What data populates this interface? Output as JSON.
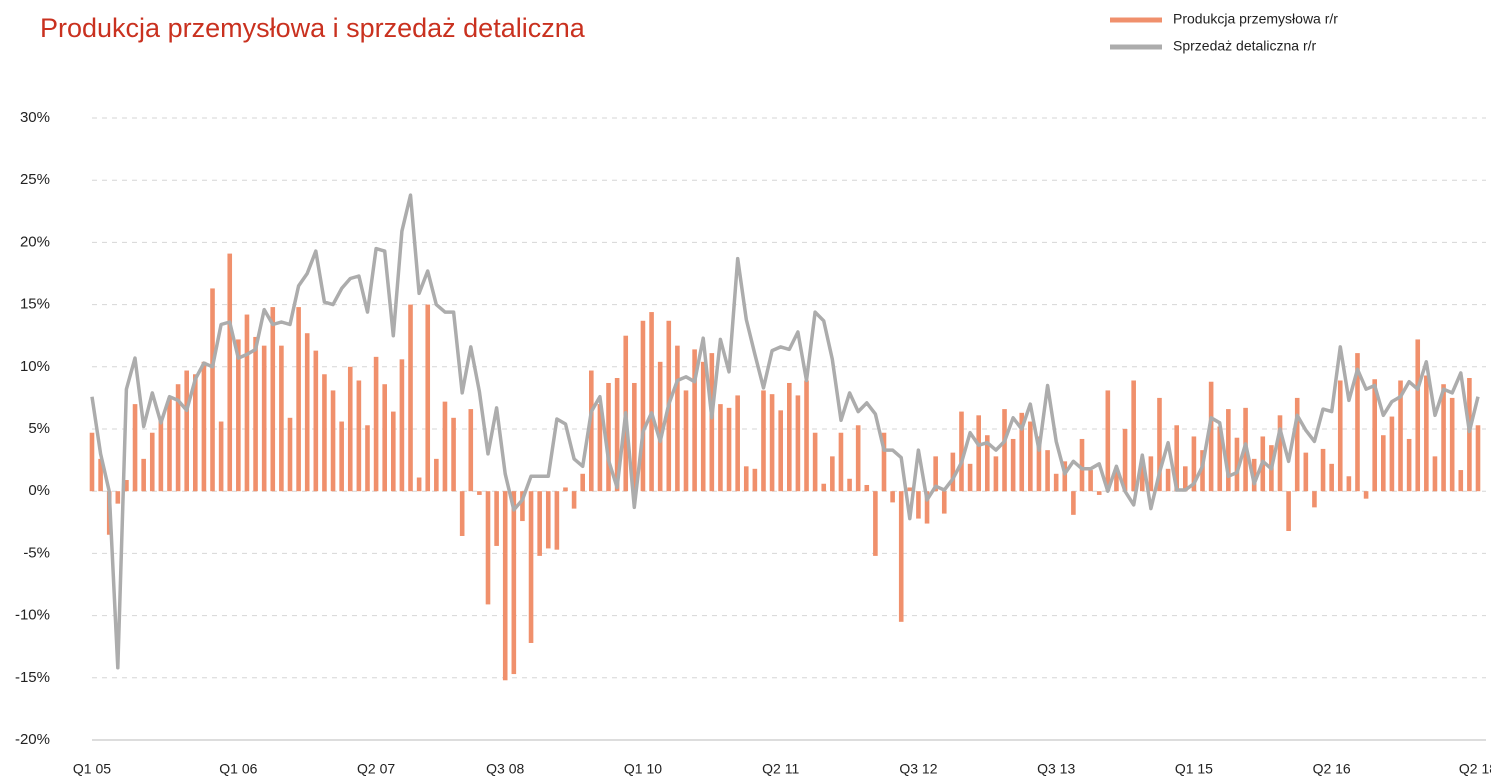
{
  "chart_data": {
    "type": "bar-line",
    "title": "Produkcja przemysłowa i sprzedaż detaliczna",
    "categories": [
      "Q1 05",
      null,
      null,
      null,
      null,
      null,
      null,
      null,
      null,
      null,
      null,
      null,
      null,
      null,
      null,
      null,
      null,
      "Q1 06",
      null,
      null,
      null,
      null,
      null,
      null,
      null,
      null,
      null,
      null,
      null,
      null,
      null,
      null,
      null,
      "Q2 07",
      null,
      null,
      null,
      null,
      null,
      null,
      null,
      null,
      null,
      null,
      null,
      null,
      null,
      null,
      "Q3 08",
      null,
      null,
      null,
      null,
      null,
      null,
      null,
      null,
      null,
      null,
      null,
      null,
      null,
      null,
      null,
      "Q1 10",
      null,
      null,
      null,
      null,
      null,
      null,
      null,
      null,
      null,
      null,
      null,
      null,
      null,
      null,
      null,
      "Q2 11",
      null,
      null,
      null,
      null,
      null,
      null,
      null,
      null,
      null,
      null,
      null,
      null,
      null,
      null,
      null,
      "Q3 12",
      null,
      null,
      null,
      null,
      null,
      null,
      null,
      null,
      null,
      null,
      null,
      null,
      null,
      null,
      null,
      "Q3 13",
      null,
      null,
      null,
      null,
      null,
      null,
      null,
      null,
      null,
      null,
      null,
      null,
      null,
      null,
      null,
      "Q1 15",
      null,
      null,
      null,
      null,
      null,
      null,
      null,
      null,
      null,
      null,
      null,
      null,
      null,
      null,
      null,
      "Q2 16",
      null,
      null,
      null,
      null,
      null,
      null,
      null,
      null,
      null,
      null,
      null,
      null,
      null,
      null,
      null,
      null,
      "Q2 18"
    ],
    "series": [
      {
        "name": "Produkcja przemysłowa r/r",
        "color": "#f0906c",
        "kind": "bar",
        "values": [
          4.7,
          2.6,
          -3.5,
          -1.0,
          0.9,
          7.0,
          2.6,
          4.7,
          6.0,
          7.5,
          8.6,
          9.7,
          9.4,
          10.4,
          16.3,
          5.6,
          19.1,
          12.2,
          14.2,
          12.4,
          11.7,
          14.8,
          11.7,
          5.9,
          14.8,
          12.7,
          11.3,
          9.4,
          8.1,
          5.6,
          10.0,
          8.9,
          5.3,
          10.8,
          8.6,
          6.4,
          10.6,
          15.0,
          1.1,
          15.0,
          2.6,
          7.2,
          5.9,
          -3.6,
          6.6,
          -0.3,
          -9.1,
          -4.4,
          -15.2,
          -14.7,
          -2.4,
          -12.2,
          -5.2,
          -4.6,
          -4.7,
          0.3,
          -1.4,
          1.4,
          9.7,
          7.0,
          8.7,
          9.1,
          12.5,
          8.7,
          13.7,
          14.4,
          10.4,
          13.7,
          11.7,
          8.1,
          11.4,
          10.4,
          11.1,
          7.0,
          6.7,
          7.7,
          2.0,
          1.8,
          8.1,
          7.8,
          6.5,
          8.7,
          7.7,
          8.9,
          4.7,
          0.6,
          2.8,
          4.7,
          1.0,
          5.3,
          0.5,
          -5.2,
          4.7,
          -0.9,
          -10.5,
          0.3,
          -2.2,
          -2.6,
          2.8,
          -1.8,
          3.1,
          6.4,
          2.2,
          6.1,
          4.5,
          2.8,
          6.6,
          4.2,
          6.3,
          5.6,
          4.4,
          3.3,
          1.4,
          2.4,
          -1.9,
          4.2,
          1.7,
          -0.3,
          8.1,
          1.6,
          5.0,
          8.9,
          2.6,
          2.8,
          7.5,
          1.8,
          5.3,
          2.0,
          4.4,
          3.3,
          8.8,
          5.2,
          6.6,
          4.3,
          6.7,
          2.6,
          4.4,
          3.7,
          6.1,
          -3.2,
          7.5,
          3.1,
          -1.3,
          3.4,
          2.2,
          8.9,
          1.2,
          11.1,
          -0.6,
          9.0,
          4.5,
          6.0,
          8.9,
          4.2,
          12.2,
          9.3,
          2.8,
          8.6,
          7.5,
          1.7,
          9.1,
          5.3
        ]
      },
      {
        "name": "Sprzedaż detaliczna r/r",
        "color": "#acacac",
        "kind": "line",
        "values": [
          7.6,
          3.0,
          0.0,
          -14.2,
          8.2,
          10.7,
          5.2,
          7.9,
          5.5,
          7.6,
          7.3,
          6.5,
          9.0,
          10.3,
          10.0,
          13.4,
          13.6,
          10.7,
          11.0,
          11.4,
          14.6,
          13.4,
          13.6,
          13.4,
          16.5,
          17.5,
          19.3,
          15.2,
          15.0,
          16.3,
          17.1,
          17.3,
          14.4,
          19.5,
          19.3,
          12.5,
          20.9,
          23.8,
          15.9,
          17.7,
          15.0,
          14.4,
          14.4,
          7.9,
          11.6,
          8.0,
          3.0,
          6.7,
          1.4,
          -1.5,
          -0.7,
          1.2,
          1.2,
          1.2,
          5.8,
          5.4,
          2.6,
          2.0,
          6.4,
          7.6,
          2.5,
          0.3,
          6.3,
          -1.3,
          4.8,
          6.3,
          4.0,
          7.0,
          8.9,
          9.2,
          8.8,
          12.3,
          5.9,
          12.2,
          9.6,
          18.7,
          13.8,
          11.0,
          8.3,
          11.3,
          11.6,
          11.4,
          12.8,
          8.9,
          14.4,
          13.7,
          10.6,
          5.7,
          7.9,
          6.4,
          7.1,
          6.2,
          3.3,
          3.3,
          2.7,
          -2.2,
          3.3,
          -0.7,
          0.4,
          0.1,
          1.0,
          2.3,
          4.7,
          3.7,
          3.9,
          3.3,
          4.0,
          5.9,
          5.0,
          7.0,
          3.3,
          8.5,
          4.0,
          1.4,
          2.4,
          1.8,
          1.8,
          2.2,
          0.0,
          2.0,
          0.0,
          -1.1,
          2.9,
          -1.4,
          1.5,
          3.9,
          0.1,
          0.1,
          0.6,
          2.0,
          5.9,
          5.5,
          1.2,
          1.5,
          3.8,
          0.6,
          2.4,
          1.8,
          5.0,
          2.4,
          6.1,
          4.9,
          4.0,
          6.6,
          6.4,
          11.6,
          7.3,
          9.8,
          8.2,
          8.5,
          6.1,
          7.2,
          7.6,
          8.8,
          8.2,
          10.4,
          6.1,
          8.2,
          7.9,
          9.5,
          4.8,
          7.6
        ]
      }
    ],
    "ylim": [
      -20,
      30
    ],
    "yticks": [
      {
        "value": -20,
        "label": "-20%"
      },
      {
        "value": -15,
        "label": "-15%"
      },
      {
        "value": -10,
        "label": "-10%"
      },
      {
        "value": -5,
        "label": "-5%"
      },
      {
        "value": 0,
        "label": "0%"
      },
      {
        "value": 5,
        "label": "5%"
      },
      {
        "value": 10,
        "label": "10%"
      },
      {
        "value": 15,
        "label": "15%"
      },
      {
        "value": 20,
        "label": "20%"
      },
      {
        "value": 25,
        "label": "25%"
      },
      {
        "value": 30,
        "label": "30%"
      }
    ],
    "grid": true,
    "legend": "top-right"
  }
}
